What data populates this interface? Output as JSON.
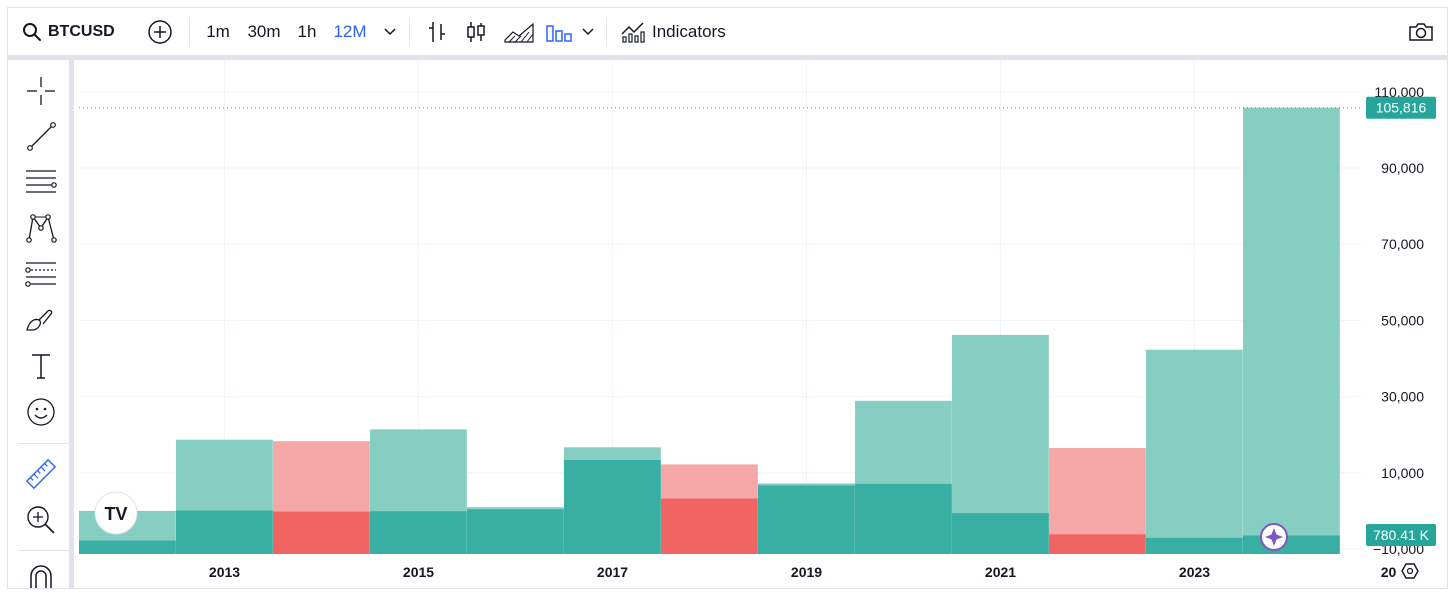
{
  "toolbar": {
    "symbol": "BTCUSD",
    "intervals": [
      "1m",
      "30m",
      "1h",
      "12M"
    ],
    "active_interval": "12M",
    "indicators_label": "Indicators",
    "icons": [
      "search-icon",
      "add-symbol-icon",
      "chevron-down-icon",
      "bar-chart-style-icon",
      "candles-style-icon",
      "area-style-icon",
      "columns-style-icon",
      "indicators-icon",
      "camera-icon"
    ]
  },
  "drawing_tools": [
    "crosshair-icon",
    "trend-line-icon",
    "horizontal-lines-icon",
    "pattern-icon",
    "fib-retracement-icon",
    "brush-icon",
    "text-icon",
    "emoji-icon",
    "ruler-icon",
    "zoom-in-icon",
    "magnet-icon"
  ],
  "colors": {
    "up": "#26a69a",
    "down": "#ef5350",
    "up_light": "#80cbbf",
    "down_light": "#f5a3a3",
    "last_price_label": "#26a69a"
  },
  "price_label": "105,816",
  "volume_label": "780.41 K",
  "logo_text": "TV",
  "chart_data": {
    "type": "bar",
    "title": "",
    "x": [
      "2012",
      "2013",
      "2014",
      "2015",
      "2016",
      "2017",
      "2018",
      "2019",
      "2020",
      "2021",
      "2022",
      "2023",
      "2024"
    ],
    "series": [
      {
        "name": "",
        "kind": "price",
        "values": [
          {
            "x": "2012",
            "low": -10000,
            "high": 0,
            "direction": "up"
          },
          {
            "x": "2013",
            "low": -10000,
            "high": 18700,
            "direction": "up"
          },
          {
            "x": "2014",
            "low": -10000,
            "high": 18300,
            "direction": "down"
          },
          {
            "x": "2015",
            "low": -10000,
            "high": 21400,
            "direction": "up"
          },
          {
            "x": "2016",
            "low": -10000,
            "high": 980,
            "direction": "up"
          },
          {
            "x": "2017",
            "low": -10000,
            "high": 16700,
            "direction": "up"
          },
          {
            "x": "2018",
            "low": -10000,
            "high": 12200,
            "direction": "down"
          },
          {
            "x": "2019",
            "low": -10000,
            "high": 7200,
            "direction": "up"
          },
          {
            "x": "2020",
            "low": -10000,
            "high": 28900,
            "direction": "up"
          },
          {
            "x": "2021",
            "low": -10000,
            "high": 46200,
            "direction": "up"
          },
          {
            "x": "2022",
            "low": -10000,
            "high": 16500,
            "direction": "down"
          },
          {
            "x": "2023",
            "low": -10000,
            "high": 42300,
            "direction": "up"
          },
          {
            "x": "2024",
            "low": -10000,
            "high": 105816,
            "direction": "up"
          }
        ]
      },
      {
        "name": "",
        "kind": "volume",
        "values": [
          {
            "x": "2012",
            "value": 3500,
            "direction": "up"
          },
          {
            "x": "2013",
            "value": 11300,
            "direction": "up"
          },
          {
            "x": "2014",
            "value": 11000,
            "direction": "down"
          },
          {
            "x": "2015",
            "value": 11100,
            "direction": "up"
          },
          {
            "x": "2016",
            "value": 11600,
            "direction": "up"
          },
          {
            "x": "2017",
            "value": 24400,
            "direction": "up"
          },
          {
            "x": "2018",
            "value": 14400,
            "direction": "down"
          },
          {
            "x": "2019",
            "value": 17800,
            "direction": "up"
          },
          {
            "x": "2020",
            "value": 18200,
            "direction": "up"
          },
          {
            "x": "2021",
            "value": 10600,
            "direction": "up"
          },
          {
            "x": "2022",
            "value": 5100,
            "direction": "down"
          },
          {
            "x": "2023",
            "value": 4200,
            "direction": "up"
          },
          {
            "x": "2024",
            "value": 4800,
            "direction": "up"
          }
        ]
      }
    ],
    "xticks": [
      "2013",
      "2015",
      "2017",
      "2019",
      "2021",
      "2023",
      "20"
    ],
    "yticks": [
      "110,000",
      "90,000",
      "70,000",
      "50,000",
      "30,000",
      "10,000",
      "−10,000"
    ],
    "ytick_values": [
      110000,
      90000,
      70000,
      50000,
      30000,
      10000,
      -10000
    ],
    "ylim": [
      -10000,
      115000
    ],
    "last_price": 105816,
    "grid": true,
    "legend": "none"
  }
}
